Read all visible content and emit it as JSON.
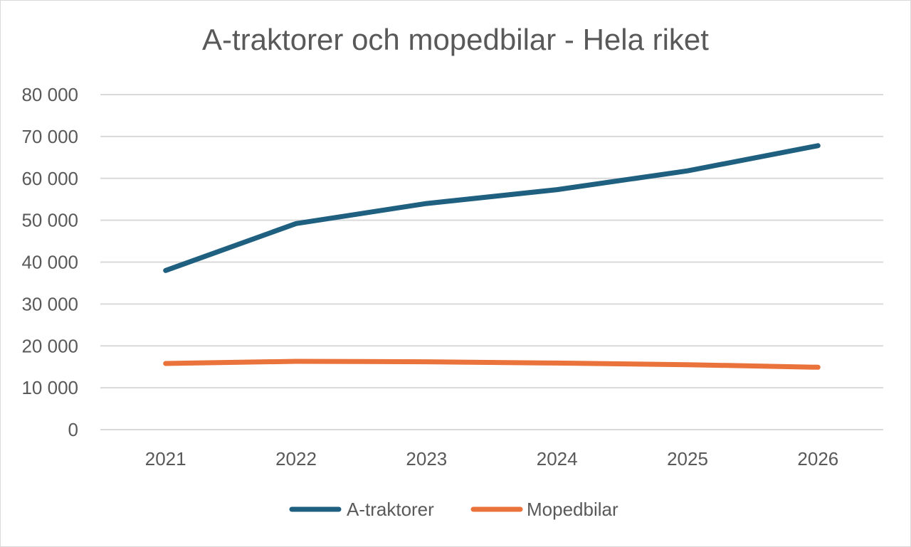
{
  "chart_data": {
    "type": "line",
    "title": "A-traktorer och mopedbilar - Hela riket",
    "categories": [
      "2021",
      "2022",
      "2023",
      "2024",
      "2025",
      "2026"
    ],
    "ylim": [
      0,
      80000
    ],
    "y_ticks": [
      0,
      10000,
      20000,
      30000,
      40000,
      50000,
      60000,
      70000,
      80000
    ],
    "y_tick_labels": [
      "0",
      "10 000",
      "20 000",
      "30 000",
      "40 000",
      "50 000",
      "60 000",
      "70 000",
      "80 000"
    ],
    "grid": true,
    "legend_position": "bottom",
    "series": [
      {
        "name": "A-traktorer",
        "color": "#1f5f7f",
        "values": [
          38000,
          49200,
          54000,
          57300,
          61800,
          67800
        ]
      },
      {
        "name": "Mopedbilar",
        "color": "#e9733a",
        "values": [
          15800,
          16300,
          16200,
          15900,
          15500,
          14900
        ]
      }
    ]
  }
}
